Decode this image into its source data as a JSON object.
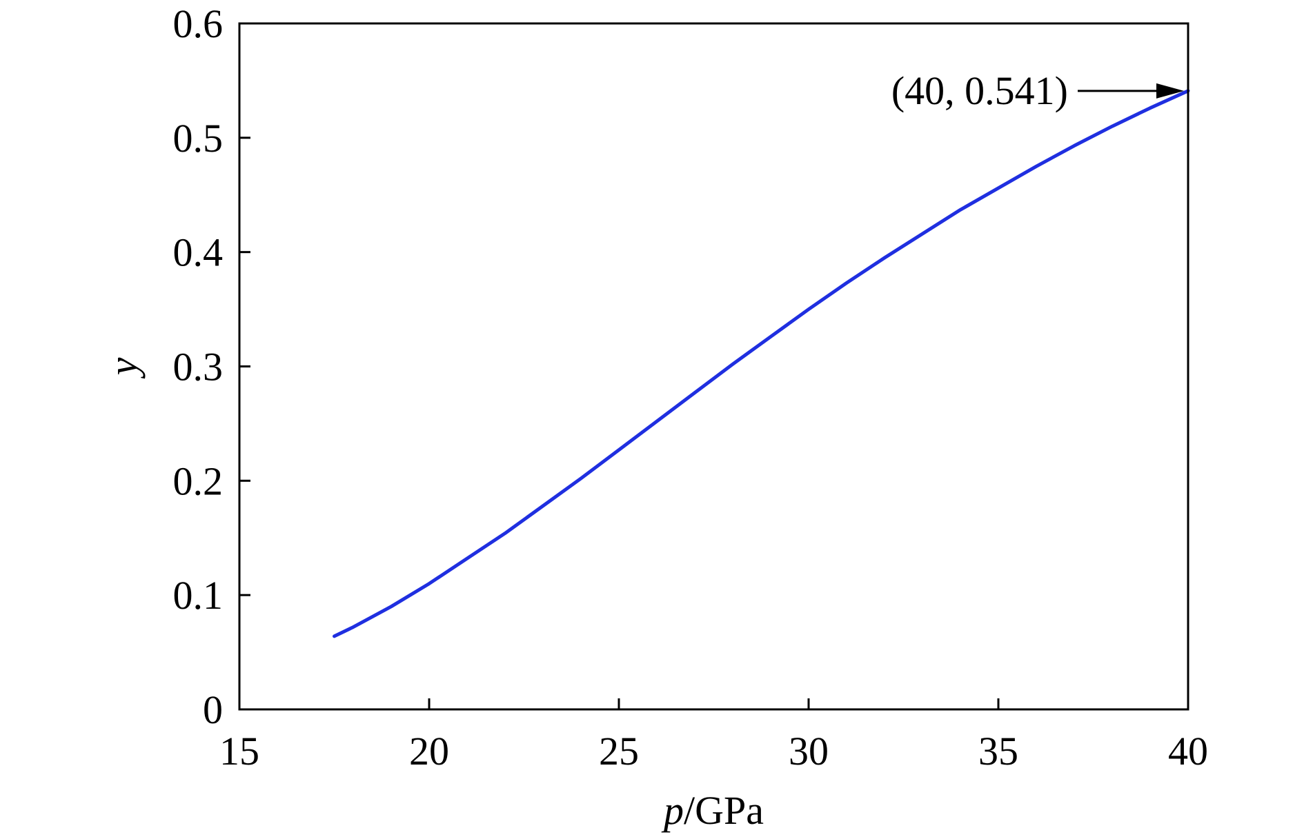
{
  "chart_data": {
    "type": "line",
    "xlabel": {
      "italic": "p",
      "rest": "/GPa"
    },
    "ylabel": "y",
    "xlim": [
      15,
      40
    ],
    "ylim": [
      0,
      0.6
    ],
    "xticks": [
      15,
      20,
      25,
      30,
      35,
      40
    ],
    "xtick_labels": [
      "15",
      "20",
      "25",
      "30",
      "35",
      "40"
    ],
    "yticks": [
      0,
      0.1,
      0.2,
      0.3,
      0.4,
      0.5,
      0.6
    ],
    "ytick_labels": [
      "0",
      "0.1",
      "0.2",
      "0.3",
      "0.4",
      "0.5",
      "0.6"
    ],
    "grid": false,
    "series": [
      {
        "color": "#1f2fe0",
        "x": [
          17.5,
          18,
          19,
          20,
          21,
          22,
          23,
          24,
          25,
          26,
          27,
          28,
          29,
          30,
          31,
          32,
          33,
          34,
          35,
          36,
          37,
          38,
          39,
          40
        ],
        "y": [
          0.064,
          0.072,
          0.09,
          0.11,
          0.132,
          0.154,
          0.178,
          0.202,
          0.227,
          0.252,
          0.277,
          0.302,
          0.326,
          0.35,
          0.373,
          0.395,
          0.416,
          0.437,
          0.456,
          0.475,
          0.493,
          0.51,
          0.526,
          0.541
        ]
      }
    ],
    "annotations": [
      {
        "text": "(40, 0.541)",
        "x": 40,
        "y": 0.541,
        "arrow": true
      }
    ]
  }
}
